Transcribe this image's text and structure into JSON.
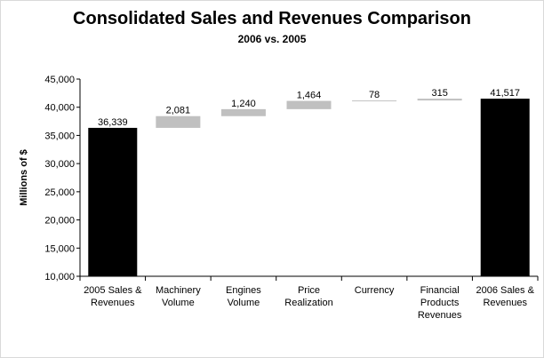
{
  "chart_data": {
    "type": "bar",
    "subtype": "waterfall",
    "title": "Consolidated Sales and Revenues Comparison",
    "subtitle": "2006 vs. 2005",
    "ylabel": "Millions of $",
    "xlabel": "",
    "ylim": [
      10000,
      45000
    ],
    "yticks": [
      10000,
      15000,
      20000,
      25000,
      30000,
      35000,
      40000,
      45000
    ],
    "ytick_labels": [
      "10,000",
      "15,000",
      "20,000",
      "25,000",
      "30,000",
      "35,000",
      "40,000",
      "45,000"
    ],
    "grid": false,
    "legend": "none",
    "categories": [
      [
        "2005 Sales &",
        "Revenues"
      ],
      [
        "Machinery",
        "Volume"
      ],
      [
        "Engines",
        "Volume"
      ],
      [
        "Price",
        "Realization"
      ],
      [
        "Currency"
      ],
      [
        "Financial",
        "Products",
        "Revenues"
      ],
      [
        "2006 Sales &",
        "Revenues"
      ]
    ],
    "bars": [
      {
        "kind": "total",
        "start": 10000,
        "end": 36339,
        "label": "36,339"
      },
      {
        "kind": "delta",
        "start": 36339,
        "end": 38420,
        "label": "2,081"
      },
      {
        "kind": "delta",
        "start": 38420,
        "end": 39660,
        "label": "1,240"
      },
      {
        "kind": "delta",
        "start": 39660,
        "end": 41124,
        "label": "1,464"
      },
      {
        "kind": "delta",
        "start": 41124,
        "end": 41202,
        "label": "78"
      },
      {
        "kind": "delta",
        "start": 41202,
        "end": 41517,
        "label": "315"
      },
      {
        "kind": "total",
        "start": 10000,
        "end": 41517,
        "label": "41,517"
      }
    ],
    "colors": {
      "total": "#000000",
      "delta": "#c0c0c0"
    }
  }
}
